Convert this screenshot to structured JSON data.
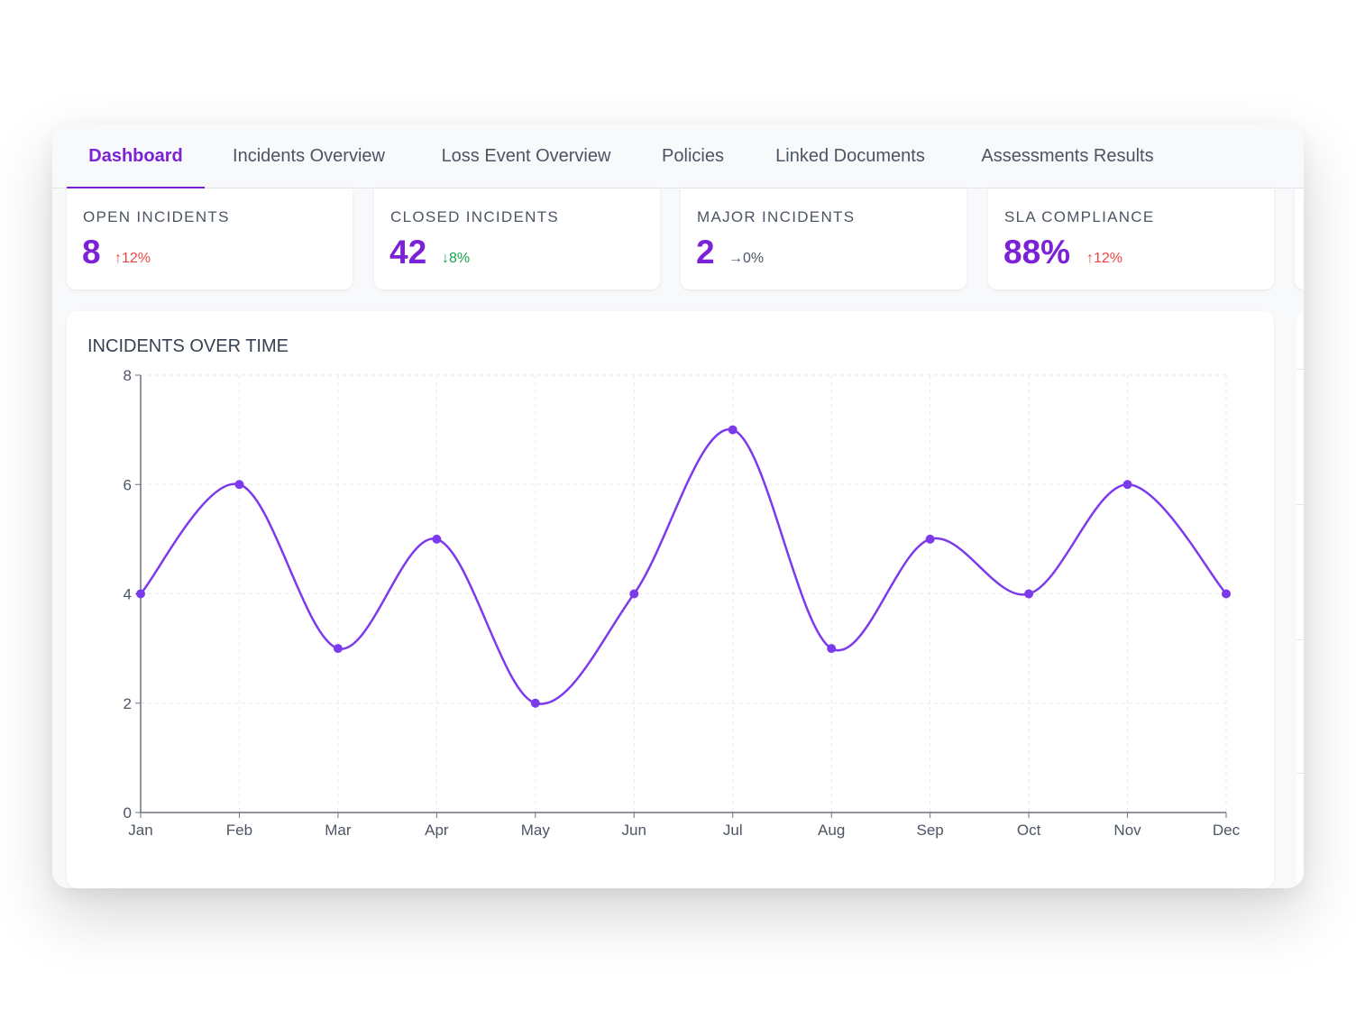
{
  "tabs": [
    {
      "label": "Dashboard",
      "active": true
    },
    {
      "label": "Incidents Overview",
      "active": false
    },
    {
      "label": "Loss Event Overview",
      "active": false
    },
    {
      "label": "Policies",
      "active": false
    },
    {
      "label": "Linked Documents",
      "active": false
    },
    {
      "label": "Assessments Results",
      "active": false
    }
  ],
  "kpis": [
    {
      "label": "OPEN INCIDENTS",
      "value": "8",
      "change": "↑12%",
      "trend": "up"
    },
    {
      "label": "CLOSED INCIDENTS",
      "value": "42",
      "change": "↓8%",
      "trend": "down"
    },
    {
      "label": "MAJOR INCIDENTS",
      "value": "2",
      "change": "→0%",
      "trend": "flat"
    },
    {
      "label": "SLA COMPLIANCE",
      "value": "88%",
      "change": "↑12%",
      "trend": "up"
    }
  ],
  "colors": {
    "accent": "#7c22d6",
    "line": "#7c3aed",
    "up": "#ef4444",
    "down": "#16a34a"
  },
  "chart_data": {
    "type": "line",
    "title": "INCIDENTS OVER TIME",
    "categories": [
      "Jan",
      "Feb",
      "Mar",
      "Apr",
      "May",
      "Jun",
      "Jul",
      "Aug",
      "Sep",
      "Oct",
      "Nov",
      "Dec"
    ],
    "values": [
      4,
      6,
      3,
      5,
      2,
      4,
      7,
      3,
      5,
      4,
      6,
      4
    ],
    "ylim": [
      0,
      8
    ],
    "yticks": [
      0,
      2,
      4,
      6,
      8
    ],
    "grid": true,
    "smooth": true,
    "xlabel": "",
    "ylabel": ""
  }
}
